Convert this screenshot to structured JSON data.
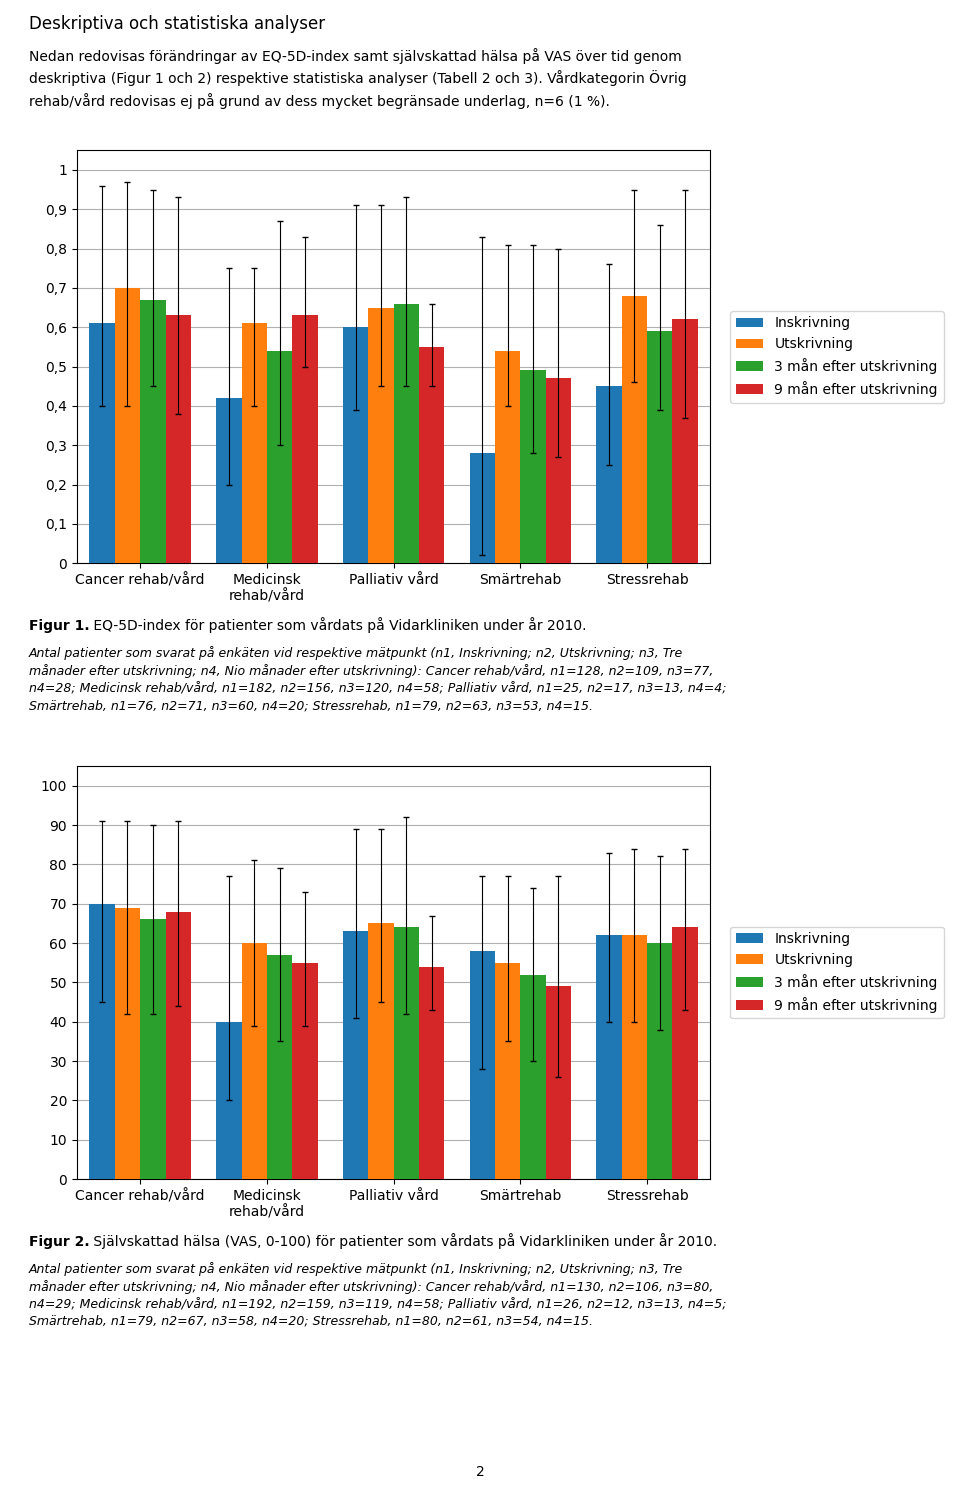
{
  "chart_data": [
    {
      "type": "bar",
      "categories": [
        "Cancer rehab/vård",
        "Medicinsk\nrehab/vård",
        "Palliativ vård",
        "Smärtrehab",
        "Stressrehab"
      ],
      "series": [
        {
          "name": "Inskrivning",
          "values": [
            0.61,
            0.42,
            0.6,
            0.28,
            0.45
          ],
          "errors_upper": [
            0.35,
            0.33,
            0.31,
            0.55,
            0.31
          ],
          "errors_lower": [
            0.21,
            0.22,
            0.21,
            0.26,
            0.2
          ]
        },
        {
          "name": "Utskrivning",
          "values": [
            0.7,
            0.61,
            0.65,
            0.54,
            0.68
          ],
          "errors_upper": [
            0.27,
            0.14,
            0.26,
            0.27,
            0.27
          ],
          "errors_lower": [
            0.3,
            0.21,
            0.2,
            0.14,
            0.22
          ]
        },
        {
          "name": "3 mån efter utskrivning",
          "values": [
            0.67,
            0.54,
            0.66,
            0.49,
            0.59
          ],
          "errors_upper": [
            0.28,
            0.33,
            0.27,
            0.32,
            0.27
          ],
          "errors_lower": [
            0.22,
            0.24,
            0.21,
            0.21,
            0.2
          ]
        },
        {
          "name": "9 mån efter utskrivning",
          "values": [
            0.63,
            0.63,
            0.55,
            0.47,
            0.62
          ],
          "errors_upper": [
            0.3,
            0.2,
            0.11,
            0.33,
            0.33
          ],
          "errors_lower": [
            0.25,
            0.13,
            0.1,
            0.2,
            0.25
          ]
        }
      ],
      "ylim": [
        0,
        1.05
      ],
      "yticks": [
        0,
        {
          "value": 0.1,
          "label": "0,1"
        },
        {
          "value": 0.2,
          "label": "0,2"
        },
        {
          "value": 0.3,
          "label": "0,3"
        },
        {
          "value": 0.4,
          "label": "0,4"
        },
        {
          "value": 0.5,
          "label": "0,5"
        },
        {
          "value": 0.6,
          "label": "0,6"
        },
        {
          "value": 0.7,
          "label": "0,7"
        },
        {
          "value": 0.8,
          "label": "0,8"
        },
        {
          "value": 0.9,
          "label": "0,9"
        },
        1
      ],
      "grid": true,
      "legend": "center left",
      "annotations": [
        "Deskriptiva och statistiska analyser",
        "Nedan redovisas förändringar av EQ-5D-index samt självskattad hälsa på VAS över tid genom\ndeskriptiva (Figur 1 och 2) respektive statistiska analyser (Tabell 2 och 3). Vårdkategorin Övrig\nrehab/vård redovisas ej på grund av dess mycket begränsade underlag, n=6 (1 %).",
        "Figur 1.",
        " EQ-5D-index för patienter som vårdats på Vidarkliniken under år 2010.",
        "Antal patienter som svarat på enkäten vid respektive mätpunkt (n1, Inskrivning; n2, Utskrivning; n3, Tre\nmånader efter utskrivning; n4, Nio månader efter utskrivning): Cancer rehab/vård, n1=128, n2=109, n3=77,\nn4=28; Medicinsk rehab/vård, n1=182, n2=156, n3=120, n4=58; Palliativ vård, n1=25, n2=17, n3=13, n4=4;\nSmärtrehab, n1=76, n2=71, n3=60, n4=20; Stressrehab, n1=79, n2=63, n3=53, n4=15."
      ]
    },
    {
      "type": "bar",
      "categories": [
        "Cancer rehab/vård",
        "Medicinsk\nrehab/vård",
        "Palliativ vård",
        "Smärtrehab",
        "Stressrehab"
      ],
      "series": [
        {
          "name": "Inskrivning",
          "values": [
            70,
            40,
            63,
            58,
            62
          ],
          "errors_upper": [
            21,
            37,
            26,
            19,
            21
          ],
          "errors_lower": [
            25,
            20,
            22,
            30,
            22
          ]
        },
        {
          "name": "Utskrivning",
          "values": [
            69,
            60,
            65,
            55,
            62
          ],
          "errors_upper": [
            22,
            21,
            24,
            22,
            22
          ],
          "errors_lower": [
            27,
            21,
            20,
            20,
            22
          ]
        },
        {
          "name": "3 mån efter utskrivning",
          "values": [
            66,
            57,
            64,
            52,
            60
          ],
          "errors_upper": [
            24,
            22,
            28,
            22,
            22
          ],
          "errors_lower": [
            24,
            22,
            22,
            22,
            22
          ]
        },
        {
          "name": "9 mån efter utskrivning",
          "values": [
            68,
            55,
            54,
            49,
            64
          ],
          "errors_upper": [
            23,
            18,
            13,
            28,
            20
          ],
          "errors_lower": [
            24,
            16,
            11,
            23,
            21
          ]
        }
      ],
      "ylim": [
        0,
        105
      ],
      "yticks": [
        0,
        10,
        20,
        30,
        40,
        50,
        60,
        70,
        80,
        90,
        100
      ],
      "grid": true,
      "legend": "center left",
      "annotations": [
        "Figur 2.",
        " Självskattad hälsa (VAS, 0-100) för patienter som vårdats på Vidarkliniken under år 2010.",
        "Antal patienter som svarat på enkäten vid respektive mätpunkt (n1, Inskrivning; n2, Utskrivning; n3, Tre\nmånader efter utskrivning; n4, Nio månader efter utskrivning): Cancer rehab/vård, n1=130, n2=106, n3=80,\nn4=29; Medicinsk rehab/vård, n1=192, n2=159, n3=119, n4=58; Palliativ vård, n1=26, n2=12, n3=13, n4=5;\nSmärtrehab, n1=79, n2=67, n3=58, n4=20; Stressrehab, n1=80, n2=61, n3=54, n4=15.",
        "2"
      ]
    }
  ]
}
